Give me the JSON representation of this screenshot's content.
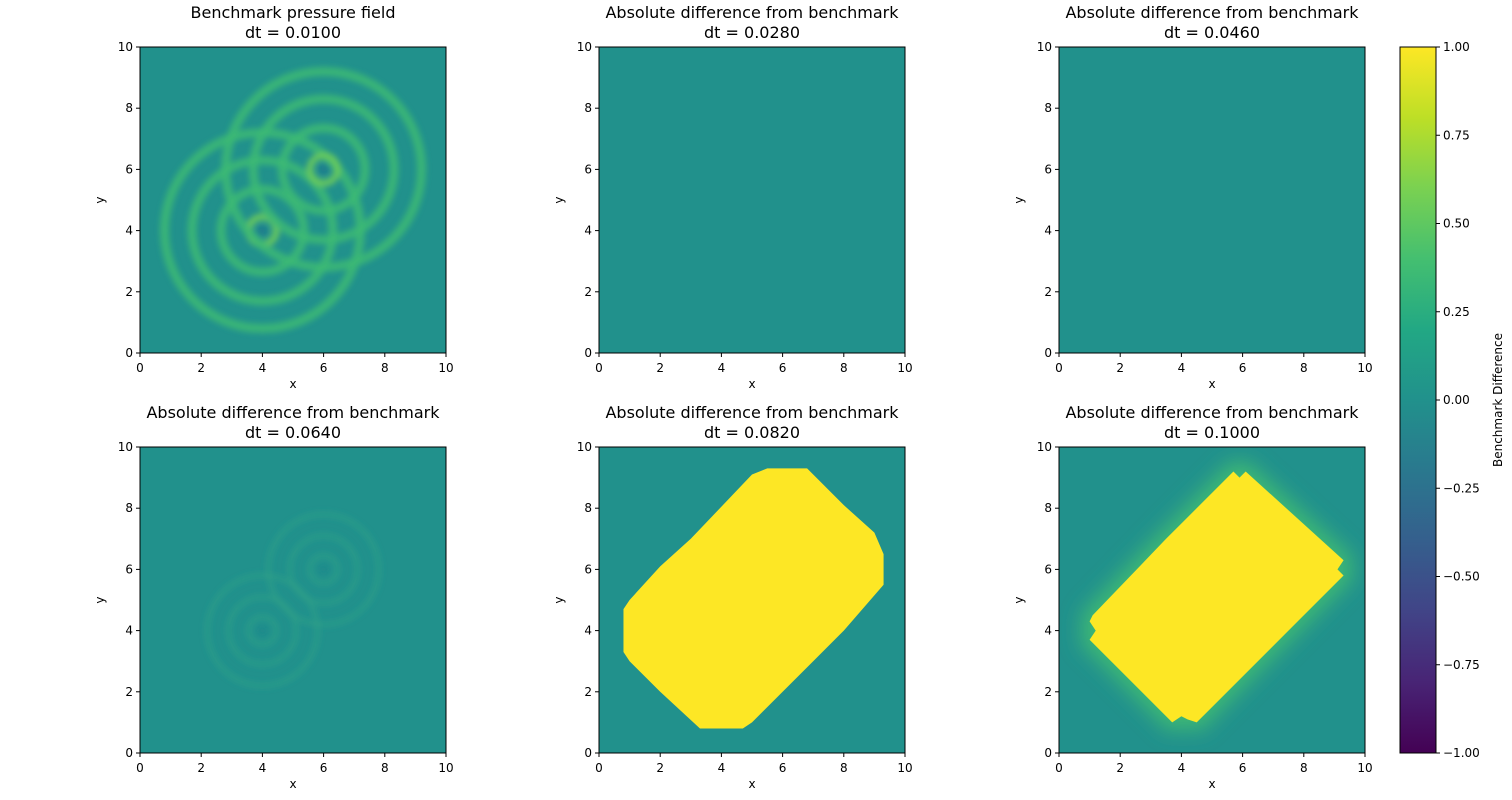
{
  "chart_data": {
    "type": "heatmap",
    "colormap": "viridis",
    "panels": [
      {
        "title_line1": "Benchmark pressure field",
        "title_line2": "dt = 0.0100",
        "xlabel": "x",
        "ylabel": "y",
        "xlim": [
          0,
          10
        ],
        "ylim": [
          0,
          10
        ],
        "field": "benchmark",
        "sources": [
          [
            4,
            4
          ],
          [
            6,
            6
          ]
        ]
      },
      {
        "title_line1": "Absolute difference from benchmark",
        "title_line2": "dt = 0.0280",
        "xlabel": "x",
        "ylabel": "y",
        "xlim": [
          0,
          10
        ],
        "ylim": [
          0,
          10
        ],
        "field": "near-zero"
      },
      {
        "title_line1": "Absolute difference from benchmark",
        "title_line2": "dt = 0.0460",
        "xlabel": "x",
        "ylabel": "y",
        "xlim": [
          0,
          10
        ],
        "ylim": [
          0,
          10
        ],
        "field": "near-zero"
      },
      {
        "title_line1": "Absolute difference from benchmark",
        "title_line2": "dt = 0.0640",
        "xlabel": "x",
        "ylabel": "y",
        "xlim": [
          0,
          10
        ],
        "ylim": [
          0,
          10
        ],
        "field": "faint-rings",
        "sources": [
          [
            4,
            4
          ],
          [
            6,
            6
          ]
        ]
      },
      {
        "title_line1": "Absolute difference from benchmark",
        "title_line2": "dt = 0.0820",
        "xlabel": "x",
        "ylabel": "y",
        "xlim": [
          0,
          10
        ],
        "ylim": [
          0,
          10
        ],
        "field": "saturated",
        "region": [
          [
            0.8,
            4.7
          ],
          [
            1.0,
            5.0
          ],
          [
            2.0,
            6.1
          ],
          [
            3.0,
            7.0
          ],
          [
            5.0,
            9.1
          ],
          [
            5.5,
            9.3
          ],
          [
            6.8,
            9.3
          ],
          [
            8.0,
            8.1
          ],
          [
            9.0,
            7.2
          ],
          [
            9.3,
            6.5
          ],
          [
            9.3,
            5.5
          ],
          [
            8.0,
            4.0
          ],
          [
            7.0,
            3.0
          ],
          [
            5.0,
            1.0
          ],
          [
            4.7,
            0.8
          ],
          [
            3.3,
            0.8
          ],
          [
            2.0,
            2.0
          ],
          [
            1.0,
            3.0
          ],
          [
            0.8,
            3.3
          ]
        ]
      },
      {
        "title_line1": "Absolute difference from benchmark",
        "title_line2": "dt = 0.1000",
        "xlabel": "x",
        "ylabel": "y",
        "xlim": [
          0,
          10
        ],
        "ylim": [
          0,
          10
        ],
        "field": "saturated-glow",
        "region": [
          [
            1.0,
            3.7
          ],
          [
            1.2,
            4.0
          ],
          [
            1.0,
            4.3
          ],
          [
            1.1,
            4.5
          ],
          [
            3.5,
            7.0
          ],
          [
            4.0,
            7.5
          ],
          [
            5.7,
            9.2
          ],
          [
            5.9,
            9.0
          ],
          [
            6.1,
            9.2
          ],
          [
            9.3,
            6.3
          ],
          [
            9.1,
            6.0
          ],
          [
            9.3,
            5.8
          ],
          [
            8.0,
            4.5
          ],
          [
            5.0,
            1.5
          ],
          [
            4.5,
            1.0
          ],
          [
            4.2,
            1.1
          ],
          [
            4.0,
            1.2
          ],
          [
            3.7,
            1.0
          ],
          [
            3.5,
            1.2
          ]
        ]
      }
    ],
    "xticks": [
      "0",
      "2",
      "4",
      "6",
      "8",
      "10"
    ],
    "yticks": [
      "0",
      "2",
      "4",
      "6",
      "8",
      "10"
    ],
    "colorbar": {
      "label": "Benchmark Difference",
      "range": [
        -1.0,
        1.0
      ],
      "ticks": [
        "1.00",
        "0.75",
        "0.50",
        "0.25",
        "0.00",
        "−0.25",
        "−0.50",
        "−0.75",
        "−1.00"
      ],
      "tick_values": [
        1.0,
        0.75,
        0.5,
        0.25,
        0.0,
        -0.25,
        -0.5,
        -0.75,
        -1.0
      ]
    },
    "colors": {
      "background_zero": "#21918c",
      "saturated": "#fde725",
      "min": "#440154"
    }
  }
}
